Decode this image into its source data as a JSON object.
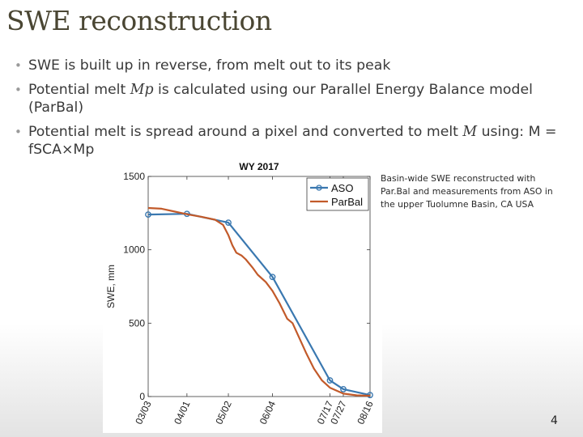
{
  "slide": {
    "title": "SWE reconstruction",
    "page_number": "4"
  },
  "bullets": [
    {
      "text_before": "SWE is built up in reverse, from melt out to its peak",
      "math": "",
      "text_after": ""
    },
    {
      "text_before": "Potential melt ",
      "math": "Mp",
      "text_after": " is calculated using our Parallel Energy Balance model (ParBal)"
    },
    {
      "text_before": "Potential melt is spread around a pixel and converted to melt ",
      "math": "M",
      "text_after": " using: M = fSCA×Mp"
    }
  ],
  "caption": "Basin-wide SWE reconstructed with Par.Bal and measurements from ASO in the upper Tuolumne Basin, CA USA",
  "chart_data": {
    "type": "line",
    "title": "WY 2017",
    "xlabel": "",
    "ylabel": "SWE, mm",
    "ylim": [
      0,
      1500
    ],
    "yticks": [
      0,
      500,
      1000,
      1500
    ],
    "xlim_day": [
      0,
      166
    ],
    "xticks": [
      {
        "label": "03/03",
        "day": 0
      },
      {
        "label": "04/01",
        "day": 29
      },
      {
        "label": "05/02",
        "day": 60
      },
      {
        "label": "06/04",
        "day": 93
      },
      {
        "label": "07/17",
        "day": 136
      },
      {
        "label": "07/27",
        "day": 146
      },
      {
        "label": "08/16",
        "day": 166
      }
    ],
    "legend": {
      "position": "top-right",
      "entries": [
        "ASO",
        "ParBal"
      ]
    },
    "series": [
      {
        "name": "ASO",
        "color": "#3a78b0",
        "marker": "circle",
        "points": [
          {
            "day": 0,
            "value": 1240
          },
          {
            "day": 29,
            "value": 1245
          },
          {
            "day": 60,
            "value": 1185
          },
          {
            "day": 93,
            "value": 815
          },
          {
            "day": 136,
            "value": 110
          },
          {
            "day": 146,
            "value": 50
          },
          {
            "day": 166,
            "value": 10
          }
        ]
      },
      {
        "name": "ParBal",
        "color": "#c25a2a",
        "marker": "none",
        "points": [
          {
            "day": 0,
            "value": 1285
          },
          {
            "day": 10,
            "value": 1280
          },
          {
            "day": 20,
            "value": 1260
          },
          {
            "day": 30,
            "value": 1240
          },
          {
            "day": 40,
            "value": 1225
          },
          {
            "day": 50,
            "value": 1205
          },
          {
            "day": 56,
            "value": 1170
          },
          {
            "day": 60,
            "value": 1100
          },
          {
            "day": 63,
            "value": 1030
          },
          {
            "day": 66,
            "value": 980
          },
          {
            "day": 70,
            "value": 960
          },
          {
            "day": 73,
            "value": 935
          },
          {
            "day": 78,
            "value": 880
          },
          {
            "day": 82,
            "value": 830
          },
          {
            "day": 88,
            "value": 780
          },
          {
            "day": 93,
            "value": 720
          },
          {
            "day": 98,
            "value": 640
          },
          {
            "day": 104,
            "value": 530
          },
          {
            "day": 108,
            "value": 500
          },
          {
            "day": 112,
            "value": 420
          },
          {
            "day": 118,
            "value": 300
          },
          {
            "day": 124,
            "value": 190
          },
          {
            "day": 130,
            "value": 110
          },
          {
            "day": 136,
            "value": 60
          },
          {
            "day": 146,
            "value": 20
          },
          {
            "day": 156,
            "value": 8
          },
          {
            "day": 166,
            "value": 5
          }
        ]
      }
    ]
  }
}
